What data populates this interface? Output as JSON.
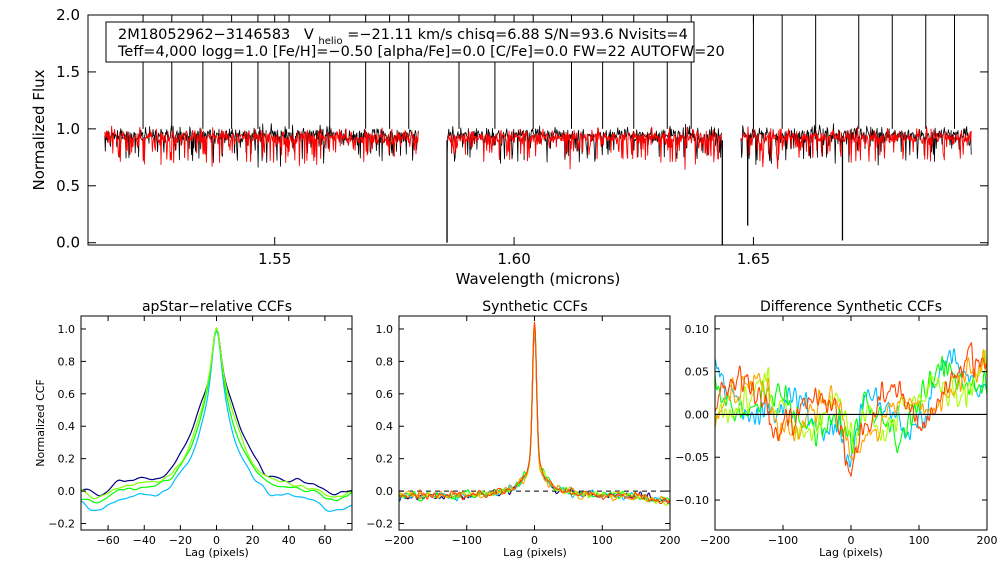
{
  "colors": {
    "observed": "#000000",
    "model": "#ff0000",
    "ccf_palette": [
      "#000080",
      "#0000ff",
      "#00bfff",
      "#00ffff",
      "#00ff00",
      "#7fff00",
      "#aaff00",
      "#ffff00",
      "#ffa500",
      "#ff4500",
      "#ff0000"
    ],
    "zero_line": "#000000"
  },
  "info_box": {
    "star_id": "2M18052962−3146583",
    "v_label": "V",
    "v_sub": "helio",
    "rest_line1": "=−21.11 km/s  chisq=6.88  S/N=93.6  Nvisits=4",
    "line2": "Teff=4,000 logg=1.0 [Fe/H]=−0.50 [alpha/Fe]=0.0 [C/Fe]=0.0 FW=22 AUTOFW=20"
  },
  "chart_data": [
    {
      "id": "spectrum",
      "type": "line",
      "title": "",
      "xlabel": "Wavelength (microns)",
      "ylabel": "Normalized Flux",
      "xlim": [
        1.511,
        1.699
      ],
      "ylim": [
        -0.02,
        2.0
      ],
      "xticks": [
        1.55,
        1.6,
        1.65
      ],
      "xtick_labels": [
        "1.55",
        "1.60",
        "1.65"
      ],
      "yticks": [
        0.0,
        0.5,
        1.0,
        1.5,
        2.0
      ],
      "ytick_labels": [
        "0.0",
        "0.5",
        "1.0",
        "1.5",
        "2.0"
      ],
      "chips": [
        [
          1.5145,
          1.58
        ],
        [
          1.586,
          1.6434
        ],
        [
          1.6474,
          1.6955
        ]
      ],
      "series": [
        {
          "name": "observed",
          "color": "#000000",
          "continuum": 0.95,
          "scatter": 0.07,
          "seed": 11
        },
        {
          "name": "model",
          "color": "#ff0000",
          "continuum": 0.93,
          "scatter": 0.07,
          "seed": 29
        }
      ],
      "spikes": [
        1.5225,
        1.5285,
        1.535,
        1.541,
        1.5465,
        1.553,
        1.5615,
        1.569,
        1.574,
        1.578,
        1.5885,
        1.596,
        1.604,
        1.612,
        1.6185,
        1.625,
        1.632,
        1.637,
        1.65,
        1.656,
        1.663,
        1.672,
        1.679,
        1.686,
        1.692
      ],
      "dips": [
        [
          1.586,
          0.0
        ],
        [
          1.6435,
          -0.02
        ],
        [
          1.6488,
          0.15
        ],
        [
          1.6686,
          0.02
        ]
      ]
    },
    {
      "id": "apstar-ccf",
      "type": "line",
      "title": "apStar−relative CCFs",
      "xlabel": "Lag (pixels)",
      "ylabel": "Normalized CCF",
      "xlim": [
        -75,
        75
      ],
      "ylim": [
        -0.24,
        1.08
      ],
      "xticks": [
        -60,
        -40,
        -20,
        0,
        20,
        40,
        60
      ],
      "xtick_labels": [
        "−60",
        "−40",
        "−20",
        "0",
        "20",
        "40",
        "60"
      ],
      "yticks": [
        -0.2,
        0.0,
        0.2,
        0.4,
        0.6,
        0.8,
        1.0
      ],
      "ytick_labels": [
        "−0.2",
        "0.0",
        "0.2",
        "0.4",
        "0.6",
        "0.8",
        "1.0"
      ],
      "series": [
        {
          "name": "visit 1",
          "color": "#000080",
          "width": 14,
          "wings": 0.0
        },
        {
          "name": "visit 2",
          "color": "#00bfff",
          "width": 9,
          "wings": -0.09
        },
        {
          "name": "visit 3",
          "color": "#00ff00",
          "width": 11,
          "wings": -0.035
        },
        {
          "name": "visit 4",
          "color": "#7fff00",
          "width": 12,
          "wings": -0.015
        }
      ]
    },
    {
      "id": "synthetic-ccf",
      "type": "line",
      "title": "Synthetic CCFs",
      "xlabel": "Lag (pixels)",
      "ylabel": "",
      "xlim": [
        -200,
        200
      ],
      "ylim": [
        -0.24,
        1.08
      ],
      "xticks": [
        -200,
        -100,
        0,
        100,
        200
      ],
      "xtick_labels": [
        "−200",
        "−100",
        "0",
        "100",
        "200"
      ],
      "yticks": [
        -0.2,
        0.0,
        0.2,
        0.4,
        0.6,
        0.8,
        1.0
      ],
      "ytick_labels": [
        "−0.2",
        "0.0",
        "0.2",
        "0.4",
        "0.6",
        "0.8",
        "1.0"
      ],
      "series": [
        {
          "name": "visit 1",
          "color": "#000080"
        },
        {
          "name": "visit 2",
          "color": "#00bfff"
        },
        {
          "name": "visit 3",
          "color": "#00ff00"
        },
        {
          "name": "visit 4",
          "color": "#aaff00"
        },
        {
          "name": "visit 5",
          "color": "#ffa500"
        },
        {
          "name": "visit 6",
          "color": "#ff4500"
        }
      ],
      "dashed_zero": true
    },
    {
      "id": "difference-ccf",
      "type": "line",
      "title": "Difference Synthetic CCFs",
      "xlabel": "Lag (pixels)",
      "ylabel": "",
      "xlim": [
        -200,
        200
      ],
      "ylim": [
        -0.135,
        0.115
      ],
      "xticks": [
        -200,
        -100,
        0,
        100,
        200
      ],
      "xtick_labels": [
        "−200",
        "−100",
        "0",
        "100",
        "200"
      ],
      "yticks": [
        -0.1,
        -0.05,
        0.0,
        0.05,
        0.1
      ],
      "ytick_labels": [
        "−0.10",
        "−0.05",
        "0.00",
        "0.05",
        "0.10"
      ],
      "series": [
        {
          "name": "visit 1",
          "color": "#00bfff"
        },
        {
          "name": "visit 2",
          "color": "#00ff00"
        },
        {
          "name": "visit 3",
          "color": "#aaff00"
        },
        {
          "name": "visit 4",
          "color": "#ffa500"
        },
        {
          "name": "visit 5",
          "color": "#ff4500"
        }
      ],
      "zero_line": true
    }
  ]
}
